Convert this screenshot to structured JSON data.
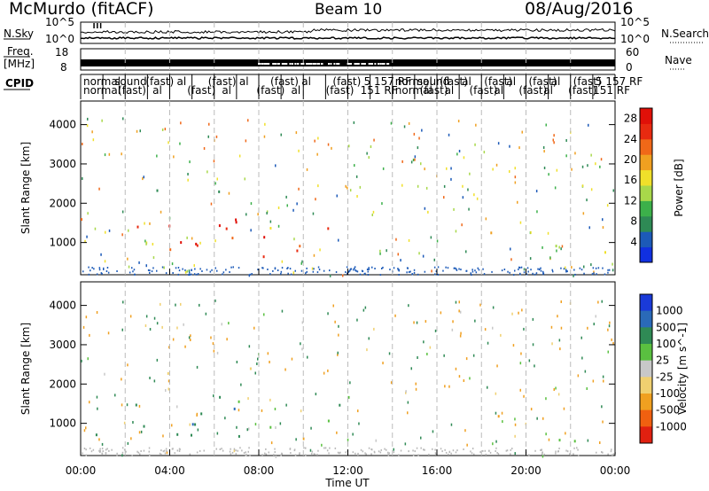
{
  "header": {
    "title_left": "McMurdo (fitACF)",
    "title_center": "Beam 10",
    "title_right": "08/Aug/2016"
  },
  "top_strip": {
    "left_labels": [
      "N.Sky",
      "Freq.",
      "[MHz]",
      "CPID"
    ],
    "right_labels": [
      "N.Search",
      "Nave"
    ],
    "nsky_ticks": [
      "10^5",
      "10^0"
    ],
    "freq_ticks": [
      "18",
      "8"
    ],
    "nave_ticks": [
      "60",
      "0"
    ],
    "cpid_row1": [
      "normal",
      "sound",
      "(fast)",
      "al",
      "(fast)",
      "al",
      "(fast)",
      "al",
      "(fast)",
      "5 157 RF",
      "normal",
      "sound",
      "(fast)",
      "al",
      "(fast)",
      "al",
      "(fast)",
      "al",
      "(fast)",
      "5 157 RF"
    ],
    "cpid_row2": [
      "normal",
      "(fast)",
      "al",
      "(fast)",
      "al",
      "(fast)",
      "al",
      "(fast)",
      "151 RF",
      "normal",
      "(fast)",
      "al",
      "(fast)",
      "al",
      "(fast)",
      "al",
      "(fast)",
      "151 RF"
    ]
  },
  "colors": {
    "power_scale": [
      "#1030e0",
      "#1c5ab8",
      "#2e8a55",
      "#3cb04a",
      "#a8d84a",
      "#f0e02a",
      "#f0a020",
      "#f06818",
      "#e82a10",
      "#e01008"
    ],
    "velocity_scale": [
      "#1a3ad8",
      "#2a6ab8",
      "#2f8a55",
      "#5ac040",
      "#c8c8c8",
      "#f0d070",
      "#f0a020",
      "#f06010",
      "#e02010"
    ]
  },
  "chart_data": [
    {
      "type": "heatmap",
      "panel": "power",
      "xlabel": "",
      "ylabel": "Slant Range [km]",
      "yticks": [
        "1000",
        "2000",
        "3000",
        "4000"
      ],
      "ylim": [
        180,
        4600
      ],
      "xlim_hours": [
        0,
        24
      ],
      "colorbar": {
        "label": "Power [dB]",
        "ticks": [
          "4",
          "8",
          "12",
          "16",
          "20",
          "24",
          "28"
        ],
        "range": [
          0,
          30
        ]
      },
      "scatter_regions": [
        {
          "t0": 0.0,
          "t1": 12.0,
          "r0": 700,
          "r1": 1700,
          "value": 24
        },
        {
          "t0": 5.0,
          "t1": 8.5,
          "r0": 600,
          "r1": 1900,
          "value": 26
        },
        {
          "t0": 0.0,
          "t1": 12.0,
          "r0": 2300,
          "r1": 2450,
          "value": 10
        },
        {
          "t0": 18.2,
          "t1": 18.8,
          "r0": 800,
          "r1": 1700,
          "value": 18
        },
        {
          "t0": 20.5,
          "t1": 24.0,
          "r0": 400,
          "r1": 1000,
          "value": 14
        }
      ]
    },
    {
      "type": "heatmap",
      "panel": "velocity",
      "xlabel": "Time UT",
      "ylabel": "Slant Range [km]",
      "xticks": [
        "00:00",
        "04:00",
        "08:00",
        "12:00",
        "16:00",
        "20:00",
        "00:00"
      ],
      "yticks": [
        "1000",
        "2000",
        "3000",
        "4000"
      ],
      "ylim": [
        180,
        4600
      ],
      "xlim_hours": [
        0,
        24
      ],
      "colorbar": {
        "label": "Velocity [m s^-1]",
        "ticks": [
          "1000",
          "500",
          "100",
          "25",
          "-25",
          "-100",
          "-500",
          "-1000"
        ]
      },
      "scatter_regions": [
        {
          "t0": 0.0,
          "t1": 12.0,
          "r0": 700,
          "r1": 1700,
          "value": 150
        },
        {
          "t0": 5.0,
          "t1": 7.5,
          "r0": 600,
          "r1": 1800,
          "value": 600
        },
        {
          "t0": 0.0,
          "t1": 12.0,
          "r0": 2300,
          "r1": 2450,
          "value": -50
        },
        {
          "t0": 18.2,
          "t1": 18.8,
          "r0": 800,
          "r1": 1700,
          "value": -300
        },
        {
          "t0": 20.5,
          "t1": 24.0,
          "r0": 400,
          "r1": 1000,
          "value": 50
        }
      ]
    }
  ]
}
